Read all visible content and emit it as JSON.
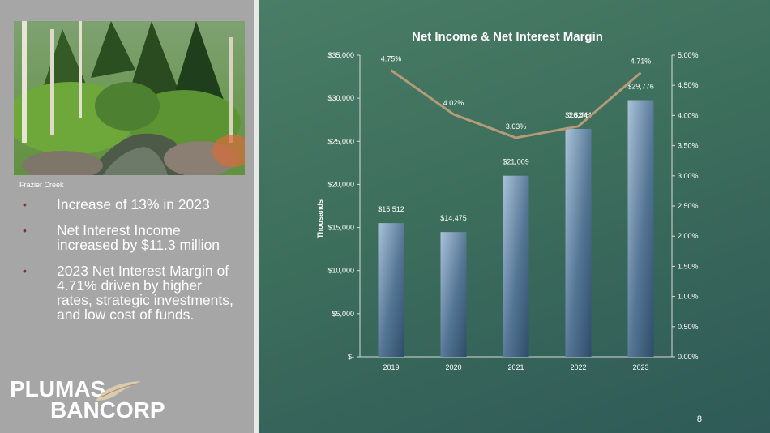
{
  "photo": {
    "caption": "Frazier Creek"
  },
  "bullets": [
    "Increase of 13% in 2023",
    "Net Interest Income increased by $11.3 million",
    "2023 Net Interest Margin of 4.71% driven by higher rates, strategic investments, and low cost of funds."
  ],
  "logo": {
    "line1": "PLUMAS",
    "line2": "BANCORP"
  },
  "page_number": "8",
  "colors": {
    "bar_top": "#a9c2d8",
    "bar_bottom": "#2f4d6a",
    "line": "#b59b78",
    "background": "#3f6a5e"
  },
  "chart_data": {
    "type": "bar",
    "title": "Net Income & Net Interest Margin",
    "xlabel": "",
    "ylabel": "Thousands",
    "categories": [
      "2019",
      "2020",
      "2021",
      "2022",
      "2023"
    ],
    "series": [
      {
        "name": "",
        "type": "bar",
        "axis": "left",
        "values": [
          15512,
          14475,
          21009,
          26444,
          29776
        ],
        "labels": [
          "$15,512",
          "$14,475",
          "$21,009",
          "$26,444",
          "$29,776"
        ]
      },
      {
        "name": "",
        "type": "line",
        "axis": "right",
        "values": [
          4.75,
          4.02,
          3.63,
          3.82,
          4.71
        ],
        "labels": [
          "4.75%",
          "4.02%",
          "3.63%",
          "3.82%",
          "4.71%"
        ]
      }
    ],
    "ylim": [
      0,
      35000
    ],
    "y_ticks": [
      "$-",
      "$5,000",
      "$10,000",
      "$15,000",
      "$20,000",
      "$25,000",
      "$30,000",
      "$35,000"
    ],
    "y2lim": [
      0,
      5
    ],
    "y2_ticks": [
      "0.00%",
      "0.50%",
      "1.00%",
      "1.50%",
      "2.00%",
      "2.50%",
      "3.00%",
      "3.50%",
      "4.00%",
      "4.50%",
      "5.00%"
    ],
    "grid": false,
    "legend": "none"
  }
}
